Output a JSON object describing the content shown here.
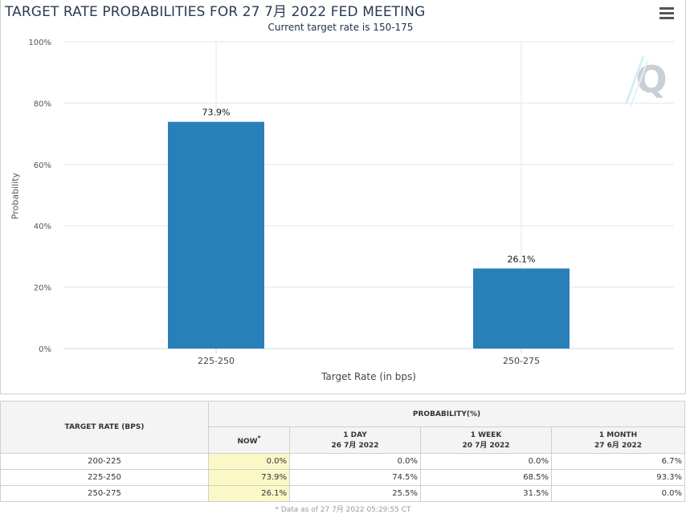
{
  "title": "TARGET RATE PROBABILITIES FOR 27 7月 2022 FED MEETING",
  "subtitle": "Current target rate is 150-175",
  "chart_data": {
    "type": "bar",
    "categories": [
      "225-250",
      "250-275"
    ],
    "values": [
      73.9,
      26.1
    ],
    "data_labels": [
      "73.9%",
      "26.1%"
    ],
    "xlabel": "Target Rate (in bps)",
    "ylabel": "Probability",
    "ylim": [
      0,
      100
    ],
    "yticks": [
      0,
      20,
      40,
      60,
      80,
      100
    ],
    "ytick_labels": [
      "0%",
      "20%",
      "40%",
      "60%",
      "80%",
      "100%"
    ],
    "bar_color": "#2980b9",
    "grid": true
  },
  "table": {
    "rate_header": "TARGET RATE (BPS)",
    "prob_header": "PROBABILITY(%)",
    "columns": [
      {
        "label": "NOW",
        "sup": "*",
        "date": ""
      },
      {
        "label": "1 DAY",
        "date": "26 7月 2022"
      },
      {
        "label": "1 WEEK",
        "date": "20 7月 2022"
      },
      {
        "label": "1 MONTH",
        "date": "27 6月 2022"
      }
    ],
    "rows": [
      {
        "rate": "200-225",
        "values": [
          "0.0%",
          "0.0%",
          "0.0%",
          "6.7%"
        ]
      },
      {
        "rate": "225-250",
        "values": [
          "73.9%",
          "74.5%",
          "68.5%",
          "93.3%"
        ]
      },
      {
        "rate": "250-275",
        "values": [
          "26.1%",
          "25.5%",
          "31.5%",
          "0.0%"
        ]
      }
    ]
  },
  "footnote": "* Data as of 27 7月 2022 05:29:55 CT"
}
